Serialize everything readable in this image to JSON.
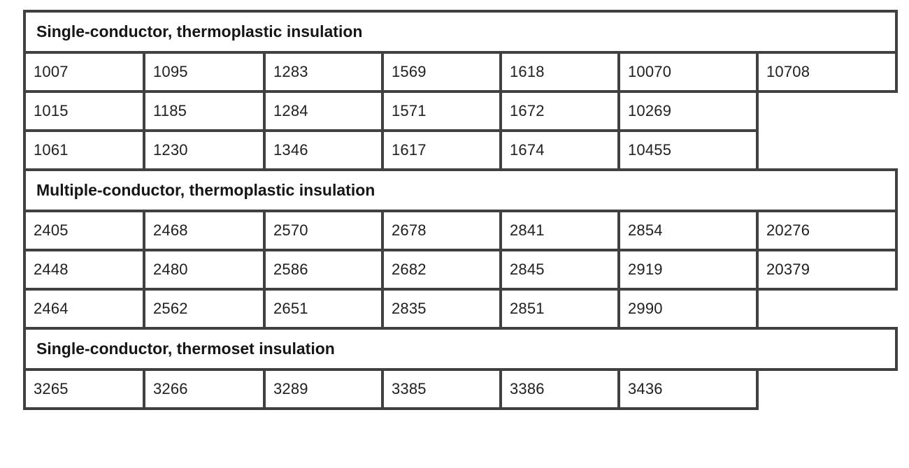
{
  "table": {
    "columns": 7,
    "border_color": "#404040",
    "background_color": "#ffffff",
    "data_text_color": "#202020",
    "header_text_color": "#161616",
    "sections": [
      {
        "header": "Single-conductor, thermoplastic insulation",
        "rows": [
          [
            "1007",
            "1095",
            "1283",
            "1569",
            "1618",
            "10070",
            "10708"
          ],
          [
            "1015",
            "1185",
            "1284",
            "1571",
            "1672",
            "10269"
          ],
          [
            "1061",
            "1230",
            "1346",
            "1617",
            "1674",
            "10455"
          ]
        ]
      },
      {
        "header": "Multiple-conductor, thermoplastic insulation",
        "rows": [
          [
            "2405",
            "2468",
            "2570",
            "2678",
            "2841",
            "2854",
            "20276"
          ],
          [
            "2448",
            "2480",
            "2586",
            "2682",
            "2845",
            "2919",
            "20379"
          ],
          [
            "2464",
            "2562",
            "2651",
            "2835",
            "2851",
            "2990"
          ]
        ]
      },
      {
        "header": "Single-conductor, thermoset insulation",
        "rows": [
          [
            "3265",
            "3266",
            "3289",
            "3385",
            "3386",
            "3436"
          ]
        ]
      }
    ]
  }
}
